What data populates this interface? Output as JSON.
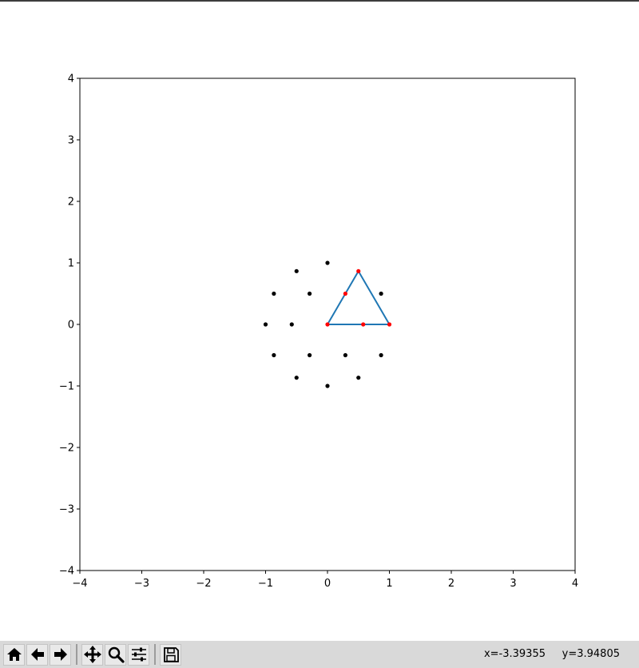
{
  "chart_data": {
    "type": "scatter",
    "title": "",
    "xlabel": "",
    "ylabel": "",
    "xlim": [
      -4,
      4
    ],
    "ylim": [
      -4,
      4
    ],
    "xticks": [
      "−4",
      "−3",
      "−2",
      "−1",
      "0",
      "1",
      "2",
      "3",
      "4"
    ],
    "yticks": [
      "−4",
      "−3",
      "−2",
      "−1",
      "0",
      "1",
      "2",
      "3",
      "4"
    ],
    "grid": false,
    "colors": {
      "black_points": "#000000",
      "red_points": "#ff0000",
      "triangle": "#1f77b4"
    },
    "series": [
      {
        "kind": "scatter",
        "color": "black",
        "points": [
          [
            0,
            1
          ],
          [
            -0.5,
            0.866
          ],
          [
            -0.866,
            0.5
          ],
          [
            -0.289,
            0.5
          ],
          [
            0.866,
            0.5
          ],
          [
            -1,
            0
          ],
          [
            -0.577,
            0
          ],
          [
            -0.866,
            -0.5
          ],
          [
            -0.289,
            -0.5
          ],
          [
            0.289,
            -0.5
          ],
          [
            0.866,
            -0.5
          ],
          [
            -0.5,
            -0.866
          ],
          [
            0.5,
            -0.866
          ],
          [
            0,
            -1
          ]
        ]
      },
      {
        "kind": "line",
        "color": "triangle",
        "points": [
          [
            0,
            0
          ],
          [
            0.5,
            0.866
          ],
          [
            1,
            0
          ],
          [
            0,
            0
          ]
        ]
      },
      {
        "kind": "scatter",
        "color": "red",
        "points": [
          [
            0.5,
            0.866
          ],
          [
            0.289,
            0.5
          ],
          [
            0,
            0
          ],
          [
            0.577,
            0
          ],
          [
            1,
            0
          ]
        ]
      }
    ]
  },
  "toolbar": {
    "buttons": [
      "home-icon",
      "back-icon",
      "forward-icon",
      "pan-icon",
      "zoom-icon",
      "configure-subplots-icon",
      "save-icon"
    ]
  },
  "status": {
    "coords": "x=-3.39355     y=3.94805"
  }
}
